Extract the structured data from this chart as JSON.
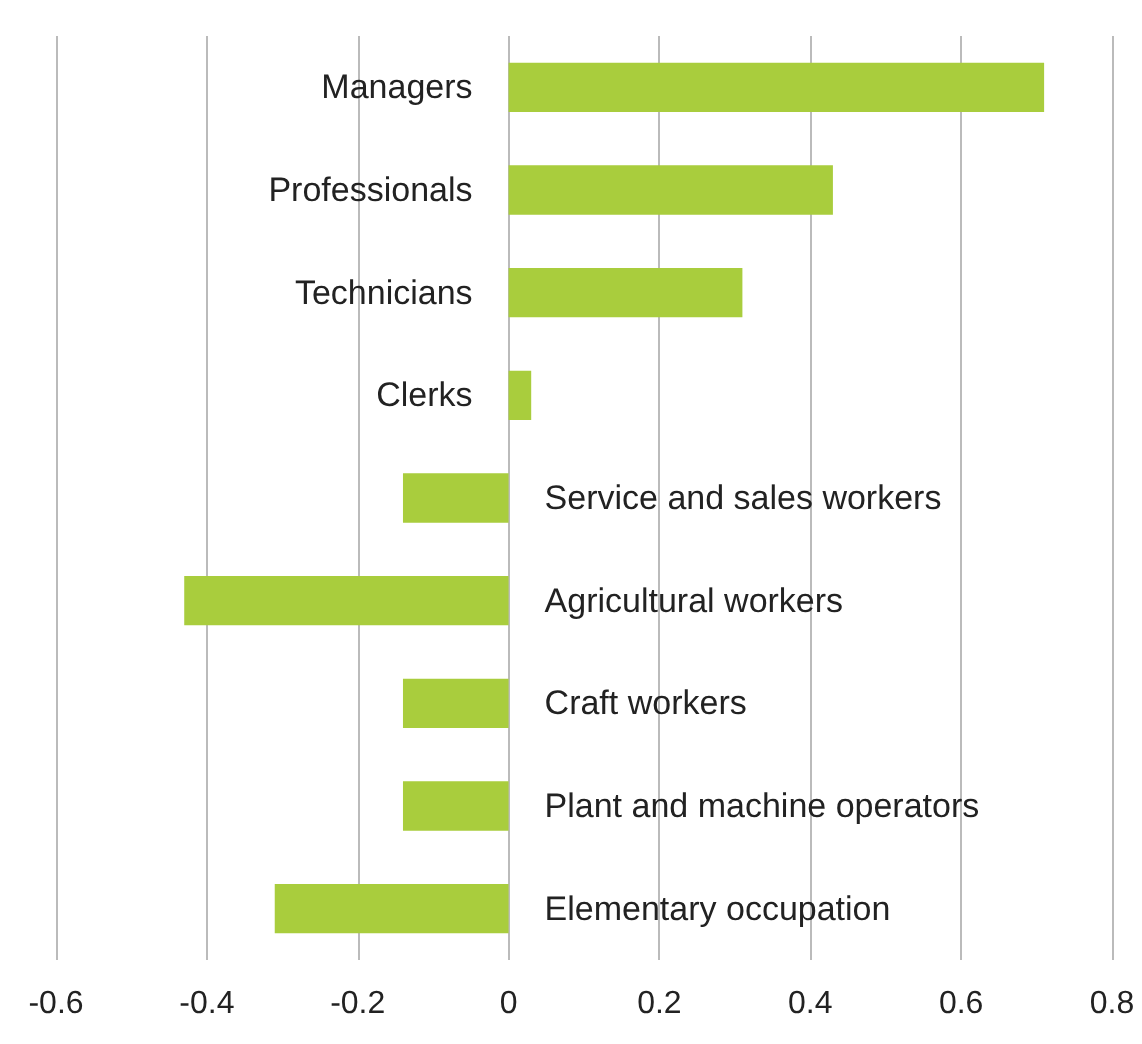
{
  "chart_data": {
    "type": "bar",
    "orientation": "horizontal",
    "categories": [
      "Managers",
      "Professionals",
      "Technicians",
      "Clerks",
      "Service and sales workers",
      "Agricultural workers",
      "Craft workers",
      "Plant and machine operators",
      "Elementary occupation"
    ],
    "values": [
      0.71,
      0.43,
      0.31,
      0.03,
      -0.14,
      -0.43,
      -0.14,
      -0.14,
      -0.31
    ],
    "color": "#a9cd3d",
    "xlim": [
      -0.6,
      0.8
    ],
    "xticks": [
      -0.6,
      -0.4,
      -0.2,
      0,
      0.2,
      0.4,
      0.6,
      0.8
    ],
    "grid": "x"
  }
}
